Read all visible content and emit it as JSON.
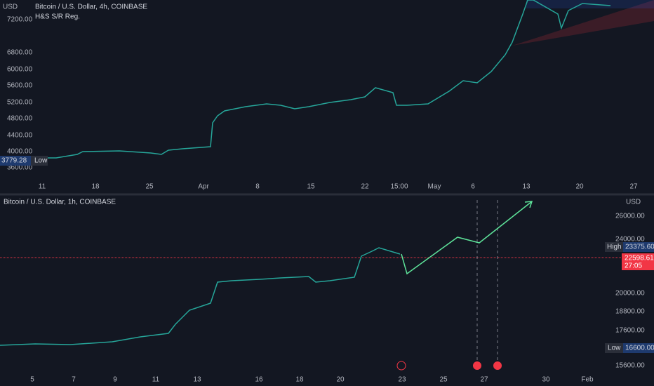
{
  "top_pane": {
    "title": "Bitcoin / U.S. Dollar, 4h, COINBASE",
    "indicator": "H&S S/R Reg.",
    "price_axis": {
      "unit": "USD",
      "ticks": [
        "7200.00",
        "6800.00",
        "6000.00",
        "5600.00",
        "5200.00",
        "4800.00",
        "4400.00",
        "4000.00",
        "3600.00"
      ]
    },
    "low_label": {
      "tag": "Low",
      "price": "3779.28"
    },
    "time_axis": [
      "11",
      "18",
      "25",
      "Apr",
      "8",
      "15",
      "22",
      "15:00",
      "May",
      "6",
      "13",
      "20",
      "27"
    ]
  },
  "bottom_pane": {
    "title": "Bitcoin / U.S. Dollar, 1h, COINBASE",
    "price_axis": {
      "unit": "USD",
      "ticks": [
        "26000.00",
        "24000.00",
        "20000.00",
        "18800.00",
        "17600.00",
        "15600.00"
      ]
    },
    "high_label": {
      "tag": "High",
      "price": "23375.60"
    },
    "current_label": {
      "price": "22598.61",
      "countdown": "27:05"
    },
    "low_label": {
      "tag": "Low",
      "price": "16600.00"
    },
    "time_axis": [
      "5",
      "7",
      "9",
      "11",
      "13",
      "16",
      "18",
      "20",
      "23",
      "25",
      "27",
      "30",
      "Feb"
    ]
  }
}
